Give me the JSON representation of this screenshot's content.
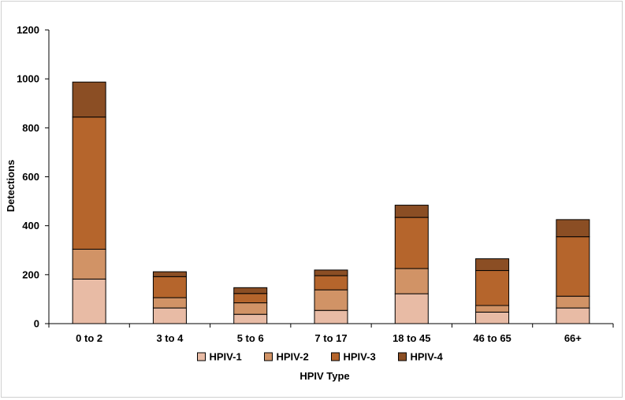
{
  "chart_data": {
    "type": "bar",
    "stacked": true,
    "categories": [
      "0 to 2",
      "3 to 4",
      "5 to 6",
      "7 to 17",
      "18 to 45",
      "46 to 65",
      "66+"
    ],
    "series": [
      {
        "name": "HPIV-1",
        "color": "#e8bba5",
        "values": [
          182,
          64,
          38,
          54,
          122,
          47,
          64
        ]
      },
      {
        "name": "HPIV-2",
        "color": "#d19366",
        "values": [
          122,
          42,
          47,
          84,
          103,
          27,
          48
        ]
      },
      {
        "name": "HPIV-3",
        "color": "#b5652c",
        "values": [
          540,
          86,
          38,
          58,
          209,
          143,
          243
        ]
      },
      {
        "name": "HPIV-4",
        "color": "#8b4e24",
        "values": [
          143,
          20,
          24,
          23,
          50,
          48,
          70
        ]
      }
    ],
    "xlabel": "HPIV Type",
    "ylabel": "Detections",
    "ylim": [
      0,
      1200
    ],
    "yticks": [
      0,
      200,
      400,
      600,
      800,
      1000,
      1200
    ],
    "grid": false,
    "legend_position": "bottom"
  }
}
